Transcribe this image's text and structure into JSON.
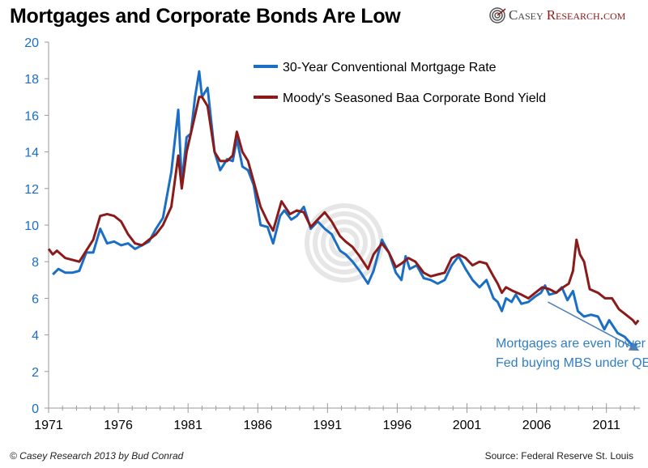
{
  "title": "Mortgages and Corporate Bonds Are Low",
  "logo": {
    "part1": "Casey",
    "part2": "Research.com"
  },
  "credit": "© Casey Research 2013 by Bud Conrad",
  "source": "Source: Federal Reserve St. Louis",
  "chart_data": {
    "type": "line",
    "title": "Mortgages and Corporate Bonds Are Low",
    "xlim": [
      1971,
      2013.4
    ],
    "ylim": [
      0,
      20
    ],
    "x_ticks": [
      "1971",
      "1976",
      "1981",
      "1986",
      "1991",
      "1996",
      "2001",
      "2006",
      "2011"
    ],
    "y_ticks": [
      "0",
      "2",
      "4",
      "6",
      "8",
      "10",
      "12",
      "14",
      "16",
      "18",
      "20"
    ],
    "grid": false,
    "legend": "top-center",
    "annotation": {
      "lines": [
        "Mortgages are even lower from",
        "Fed buying MBS under QE"
      ],
      "arrow_from": [
        2006.8,
        5.8
      ],
      "arrow_to": [
        2013.2,
        3.2
      ],
      "color": "#2f7ec4"
    },
    "series": [
      {
        "name": "30-Year Conventional Mortgage Rate",
        "color": "#1a6fc4",
        "x": [
          1971.3,
          1971.7,
          1972.2,
          1972.7,
          1973.2,
          1973.7,
          1974.2,
          1974.7,
          1975.2,
          1975.7,
          1976.2,
          1976.7,
          1977.2,
          1977.7,
          1978.2,
          1978.7,
          1979.2,
          1979.8,
          1980.3,
          1980.55,
          1980.9,
          1981.2,
          1981.5,
          1981.8,
          1982.0,
          1982.4,
          1982.9,
          1983.3,
          1983.8,
          1984.2,
          1984.5,
          1984.9,
          1985.3,
          1985.7,
          1986.2,
          1986.7,
          1987.1,
          1987.6,
          1987.9,
          1988.4,
          1988.8,
          1989.3,
          1989.8,
          1990.3,
          1990.8,
          1991.3,
          1991.9,
          1992.3,
          1992.8,
          1993.3,
          1993.9,
          1994.3,
          1994.9,
          1995.4,
          1995.9,
          1996.3,
          1996.6,
          1996.9,
          1997.4,
          1997.9,
          1998.4,
          1998.9,
          1999.4,
          1999.9,
          2000.4,
          2000.9,
          2001.4,
          2001.9,
          2002.4,
          2002.9,
          2003.2,
          2003.5,
          2003.8,
          2004.2,
          2004.5,
          2004.9,
          2005.4,
          2005.9,
          2006.3,
          2006.6,
          2006.9,
          2007.4,
          2007.8,
          2008.2,
          2008.6,
          2008.95,
          2009.4,
          2009.9,
          2010.4,
          2010.85,
          2011.2,
          2011.8,
          2012.3,
          2012.9,
          2013.2
        ],
        "y": [
          7.3,
          7.6,
          7.4,
          7.4,
          7.5,
          8.5,
          8.5,
          9.8,
          9.0,
          9.1,
          8.9,
          9.0,
          8.7,
          8.9,
          9.1,
          9.8,
          10.4,
          12.9,
          16.3,
          12.3,
          14.8,
          15.0,
          17.0,
          18.4,
          17.0,
          17.5,
          14.0,
          13.0,
          13.6,
          13.5,
          14.7,
          13.2,
          13.0,
          12.2,
          10.0,
          9.9,
          9.0,
          10.5,
          10.8,
          10.3,
          10.5,
          11.0,
          9.8,
          10.2,
          9.8,
          9.5,
          8.6,
          8.4,
          8.0,
          7.5,
          6.8,
          7.5,
          9.2,
          8.5,
          7.4,
          7.0,
          8.3,
          7.6,
          7.8,
          7.1,
          7.0,
          6.8,
          7.0,
          7.8,
          8.3,
          7.6,
          7.0,
          6.6,
          7.0,
          6.0,
          5.8,
          5.3,
          6.0,
          5.8,
          6.2,
          5.7,
          5.8,
          6.1,
          6.3,
          6.7,
          6.2,
          6.3,
          6.6,
          5.9,
          6.4,
          5.3,
          5.0,
          5.1,
          5.0,
          4.3,
          4.8,
          4.1,
          3.9,
          3.4,
          3.5
        ]
      },
      {
        "name": "Moody's Seasoned Baa Corporate Bond Yield",
        "color": "#8b1a1a",
        "x": [
          1971.0,
          1971.3,
          1971.6,
          1972.2,
          1972.7,
          1973.2,
          1973.7,
          1974.2,
          1974.7,
          1975.2,
          1975.7,
          1976.2,
          1976.7,
          1977.2,
          1977.7,
          1978.2,
          1978.7,
          1979.2,
          1979.8,
          1980.3,
          1980.55,
          1980.9,
          1981.2,
          1981.5,
          1981.8,
          1982.0,
          1982.4,
          1982.9,
          1983.3,
          1983.8,
          1984.2,
          1984.5,
          1984.9,
          1985.3,
          1985.7,
          1986.2,
          1986.7,
          1987.1,
          1987.7,
          1988.3,
          1988.8,
          1989.3,
          1989.8,
          1990.3,
          1990.8,
          1991.3,
          1991.9,
          1992.3,
          1992.8,
          1993.3,
          1993.9,
          1994.3,
          1994.9,
          1995.4,
          1995.9,
          1996.3,
          1996.8,
          1997.3,
          1997.9,
          1998.4,
          1998.9,
          1999.4,
          1999.9,
          2000.4,
          2000.9,
          2001.4,
          2001.9,
          2002.4,
          2002.9,
          2003.2,
          2003.5,
          2003.8,
          2004.3,
          2004.9,
          2005.4,
          2005.9,
          2006.4,
          2006.9,
          2007.4,
          2007.9,
          2008.3,
          2008.6,
          2008.85,
          2009.1,
          2009.4,
          2009.8,
          2010.4,
          2010.9,
          2011.4,
          2011.9,
          2012.4,
          2012.9,
          2013.1,
          2013.3
        ],
        "y": [
          8.7,
          8.4,
          8.6,
          8.2,
          8.1,
          8.0,
          8.6,
          9.2,
          10.5,
          10.6,
          10.5,
          10.2,
          9.5,
          9.0,
          8.9,
          9.2,
          9.5,
          10.0,
          11.0,
          13.8,
          12.0,
          14.0,
          15.0,
          16.0,
          17.0,
          17.0,
          16.5,
          14.0,
          13.5,
          13.5,
          13.8,
          15.1,
          14.0,
          13.5,
          12.4,
          11.0,
          10.2,
          9.7,
          11.3,
          10.6,
          10.8,
          10.7,
          9.9,
          10.3,
          10.7,
          10.2,
          9.4,
          9.1,
          8.8,
          8.3,
          7.6,
          8.4,
          9.0,
          8.5,
          7.7,
          7.9,
          8.2,
          8.0,
          7.4,
          7.2,
          7.3,
          7.4,
          8.2,
          8.4,
          8.2,
          7.8,
          8.0,
          7.9,
          7.2,
          6.8,
          6.3,
          6.6,
          6.4,
          6.2,
          6.0,
          6.3,
          6.6,
          6.5,
          6.3,
          6.6,
          6.8,
          7.5,
          9.2,
          8.4,
          8.0,
          6.5,
          6.3,
          6.0,
          6.0,
          5.4,
          5.1,
          4.8,
          4.6,
          4.8
        ]
      }
    ]
  }
}
